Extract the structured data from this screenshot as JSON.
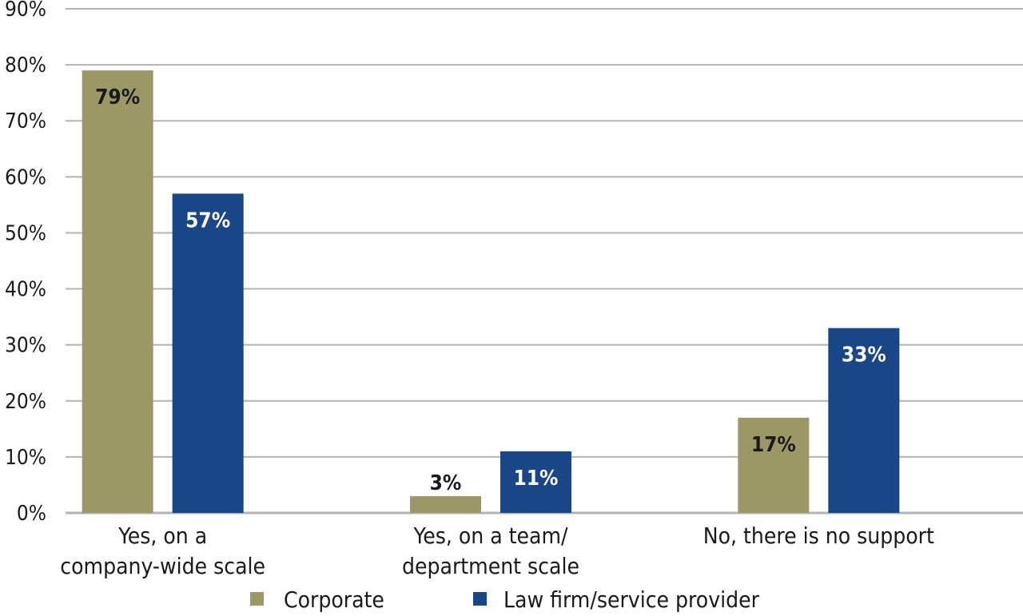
{
  "chart_data": {
    "type": "bar",
    "categories": [
      [
        "Yes, on a",
        "company-wide scale"
      ],
      [
        "Yes, on a team/",
        "department scale"
      ],
      [
        "No, there is no support"
      ]
    ],
    "series": [
      {
        "name": "Corporate",
        "values": [
          79,
          3,
          17
        ],
        "labels": [
          "79%",
          "3%",
          "17%"
        ],
        "color": "#9c9766",
        "label_color": "#1a1a1a"
      },
      {
        "name": "Law firm/service provider",
        "values": [
          57,
          11,
          33
        ],
        "labels": [
          "57%",
          "11%",
          "33%"
        ],
        "color": "#1a4586",
        "label_color": "#ffffff"
      }
    ],
    "yticks": [
      "0%",
      "10%",
      "20%",
      "30%",
      "40%",
      "50%",
      "60%",
      "70%",
      "80%",
      "90%"
    ],
    "ylim": [
      0,
      90
    ],
    "grid": true,
    "legend": "bottom-center",
    "gridline_color": "#b3b3b3"
  }
}
